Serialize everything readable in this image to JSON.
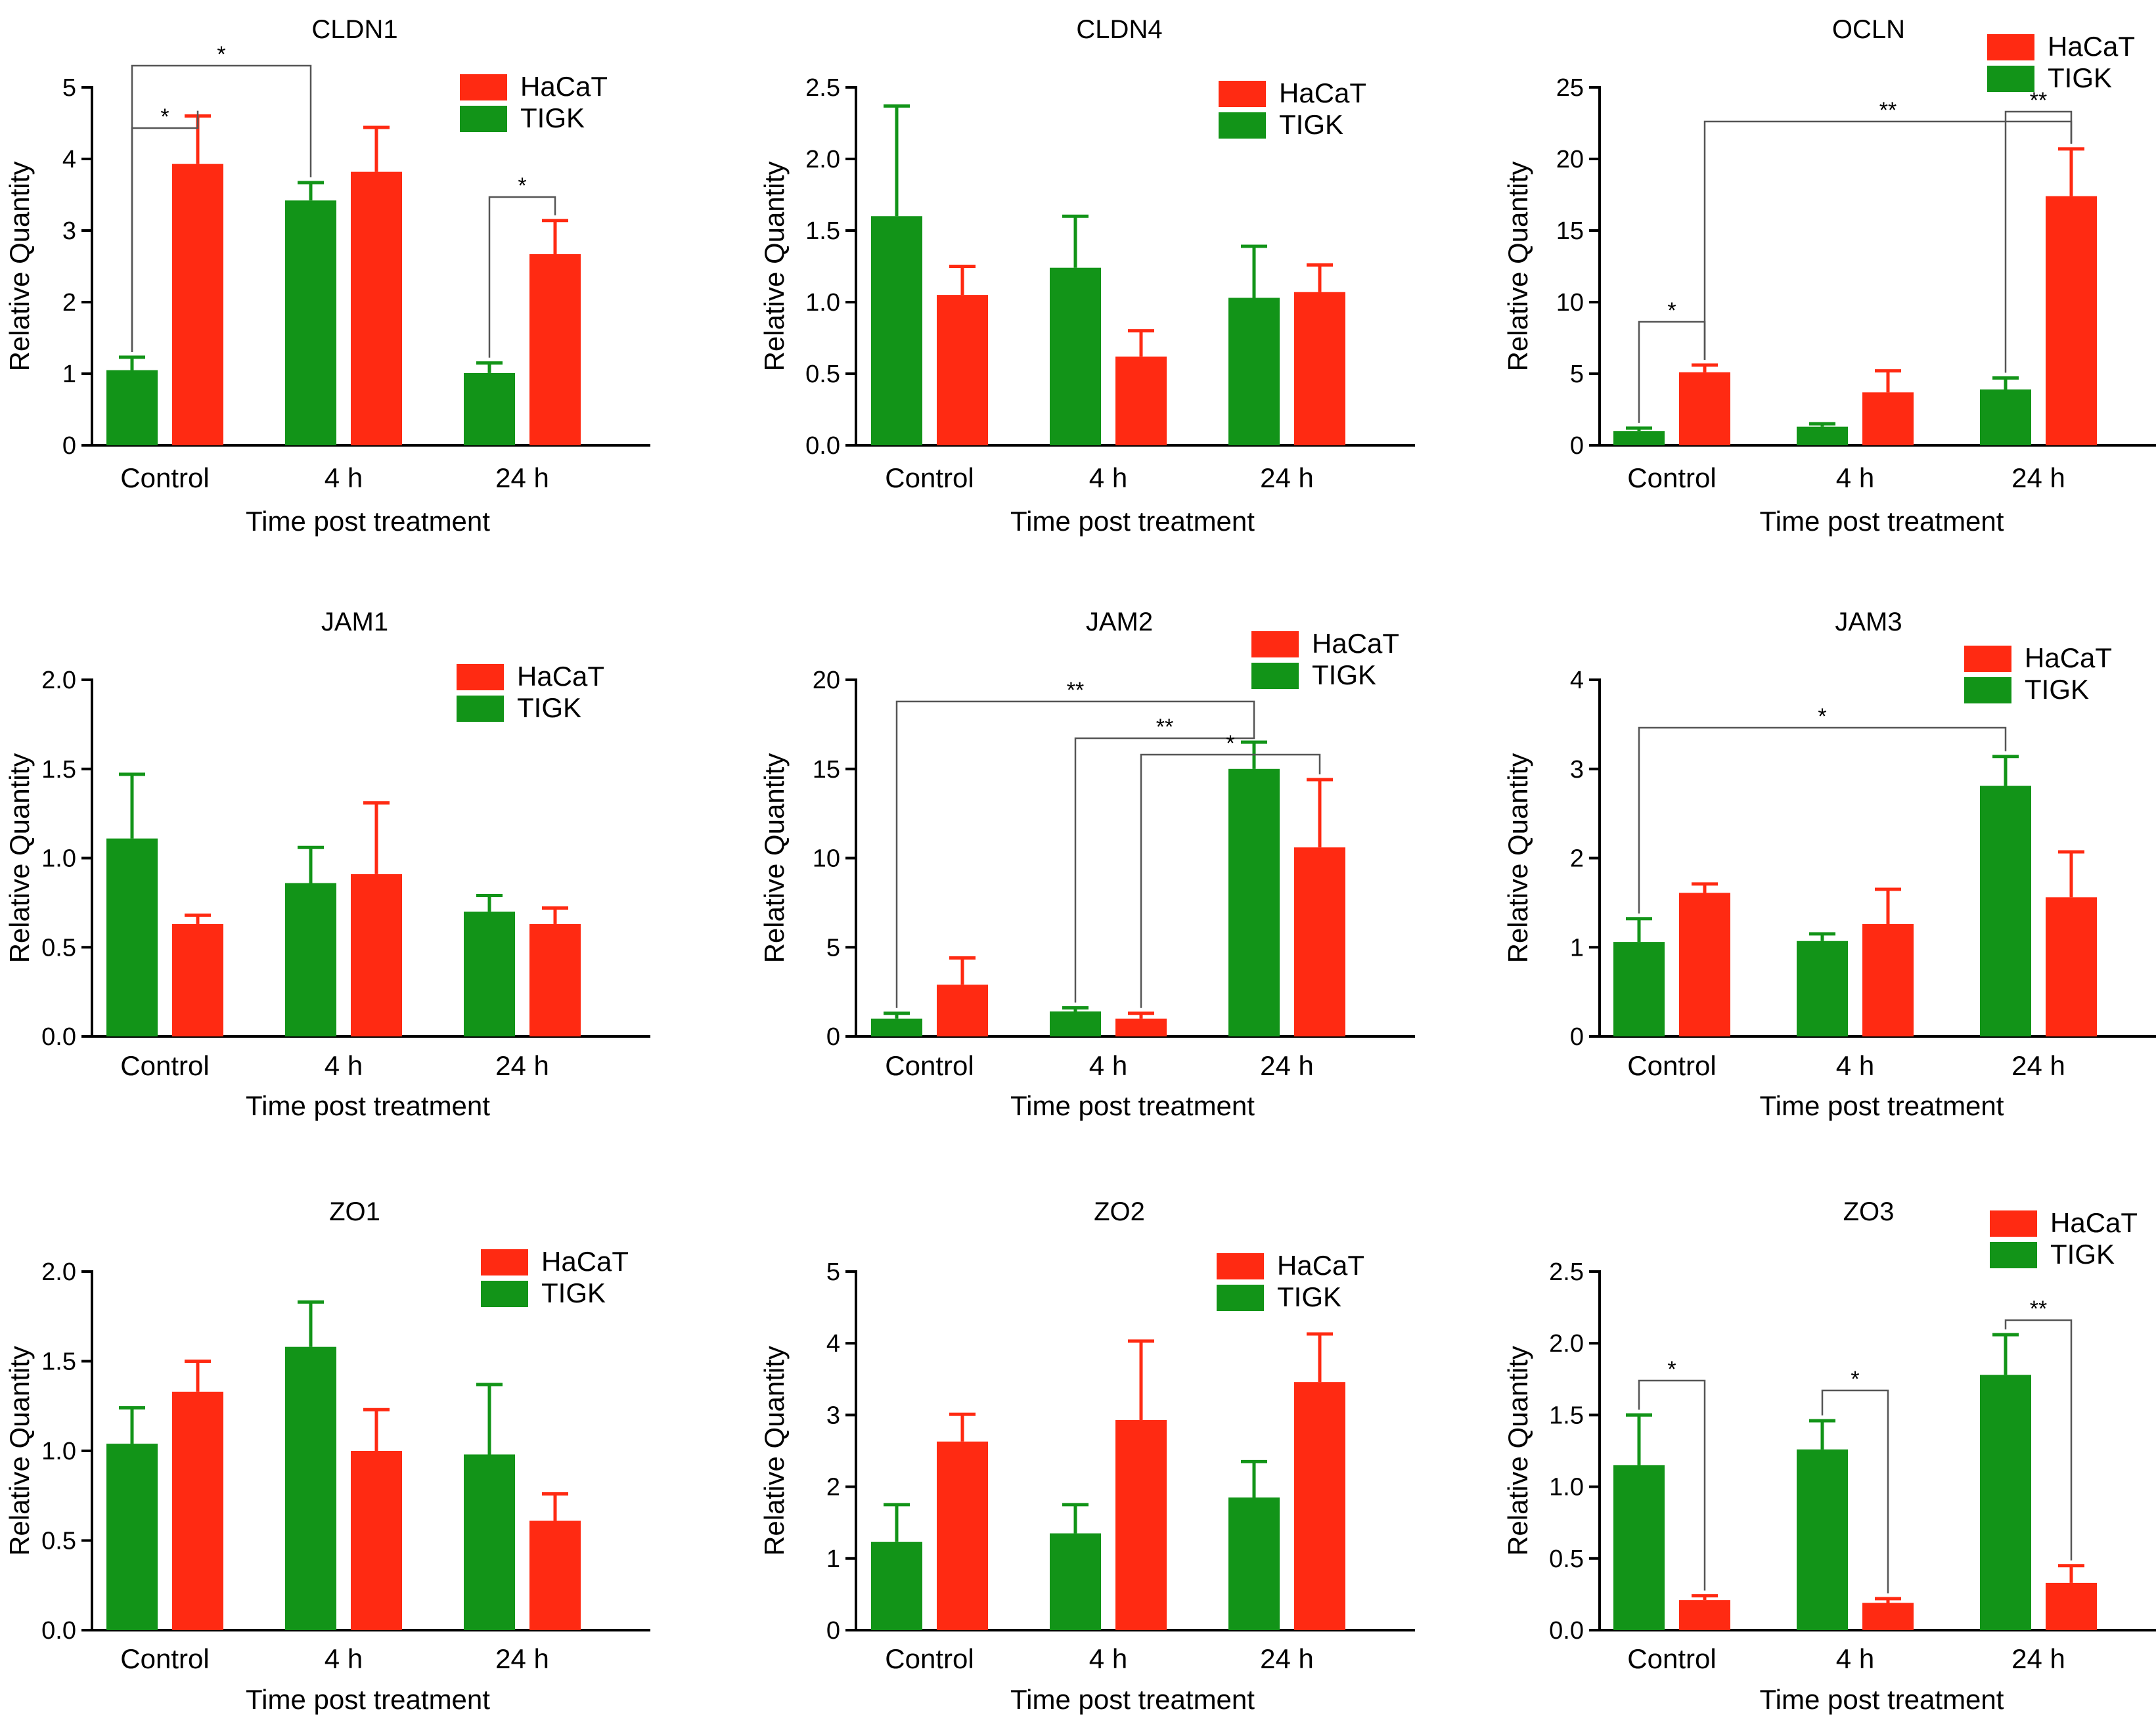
{
  "figure": {
    "colors": {
      "HaCaT": "#ff2a12",
      "TIGK": "#129418"
    },
    "chart_data": [
      {
        "type": "bar",
        "title": "CLDN1",
        "categories": [
          "Control",
          "4 h",
          "24 h"
        ],
        "xlabel": "Time post treatment",
        "ylabel": "Relative Quantity",
        "ylim": [
          0,
          5
        ],
        "yticks": [
          0,
          1,
          2,
          3,
          4,
          5
        ],
        "ytick_labels": [
          "0",
          "1",
          "2",
          "3",
          "4",
          "5"
        ],
        "legend_order": [
          "HaCaT",
          "TIGK"
        ],
        "series": [
          {
            "name": "TIGK",
            "values": [
              1.05,
              3.42,
              1.01
            ],
            "errors": [
              0.18,
              0.25,
              0.14
            ]
          },
          {
            "name": "HaCaT",
            "values": [
              3.93,
              3.82,
              2.67
            ],
            "errors": [
              0.67,
              0.62,
              0.47
            ]
          }
        ],
        "significance": [
          {
            "label": "*",
            "from": [
              0,
              0
            ],
            "to": [
              0,
              1
            ]
          },
          {
            "label": "*",
            "from": [
              0,
              0
            ],
            "to": [
              1,
              0
            ]
          },
          {
            "label": "*",
            "from": [
              2,
              0
            ],
            "to": [
              2,
              1
            ]
          }
        ]
      },
      {
        "type": "bar",
        "title": "CLDN4",
        "categories": [
          "Control",
          "4 h",
          "24 h"
        ],
        "xlabel": "Time post treatment",
        "ylabel": "Relative Quantity",
        "ylim": [
          0,
          2.5
        ],
        "yticks": [
          0,
          0.5,
          1,
          1.5,
          2,
          2.5
        ],
        "ytick_labels": [
          "0.0",
          "0.5",
          "1.0",
          "1.5",
          "2.0",
          "2.5"
        ],
        "legend_order": [
          "HaCaT",
          "TIGK"
        ],
        "series": [
          {
            "name": "TIGK",
            "values": [
              1.6,
              1.24,
              1.03
            ],
            "errors": [
              0.77,
              0.36,
              0.36
            ]
          },
          {
            "name": "HaCaT",
            "values": [
              1.05,
              0.62,
              1.07
            ],
            "errors": [
              0.2,
              0.18,
              0.19
            ]
          }
        ],
        "significance": []
      },
      {
        "type": "bar",
        "title": "OCLN",
        "categories": [
          "Control",
          "4 h",
          "24 h"
        ],
        "xlabel": "Time post treatment",
        "ylabel": "Relative Quantity",
        "ylim": [
          0,
          25
        ],
        "yticks": [
          0,
          5,
          10,
          15,
          20,
          25
        ],
        "ytick_labels": [
          "0",
          "5",
          "10",
          "15",
          "20",
          "25"
        ],
        "legend_order": [
          "HaCaT",
          "TIGK"
        ],
        "series": [
          {
            "name": "TIGK",
            "values": [
              1.0,
              1.3,
              3.9
            ],
            "errors": [
              0.2,
              0.2,
              0.8
            ]
          },
          {
            "name": "HaCaT",
            "values": [
              5.1,
              3.7,
              17.4
            ],
            "errors": [
              0.5,
              1.5,
              3.3
            ]
          }
        ],
        "significance": [
          {
            "label": "*",
            "from": [
              0,
              0
            ],
            "to": [
              0,
              1
            ]
          },
          {
            "label": "**",
            "from": [
              0,
              1
            ],
            "to": [
              2,
              1
            ]
          },
          {
            "label": "**",
            "from": [
              2,
              0
            ],
            "to": [
              2,
              1
            ]
          }
        ]
      },
      {
        "type": "bar",
        "title": "JAM1",
        "categories": [
          "Control",
          "4 h",
          "24 h"
        ],
        "xlabel": "Time post treatment",
        "ylabel": "Relative Quantity",
        "ylim": [
          0,
          2
        ],
        "yticks": [
          0,
          0.5,
          1,
          1.5,
          2
        ],
        "ytick_labels": [
          "0.0",
          "0.5",
          "1.0",
          "1.5",
          "2.0"
        ],
        "legend_order": [
          "HaCaT",
          "TIGK"
        ],
        "series": [
          {
            "name": "TIGK",
            "values": [
              1.11,
              0.86,
              0.7
            ],
            "errors": [
              0.36,
              0.2,
              0.09
            ]
          },
          {
            "name": "HaCaT",
            "values": [
              0.63,
              0.91,
              0.63
            ],
            "errors": [
              0.05,
              0.4,
              0.09
            ]
          }
        ],
        "significance": []
      },
      {
        "type": "bar",
        "title": "JAM2",
        "categories": [
          "Control",
          "4 h",
          "24 h"
        ],
        "xlabel": "Time post treatment",
        "ylabel": "Relative Quantity",
        "ylim": [
          0,
          20
        ],
        "yticks": [
          0,
          5,
          10,
          15,
          20
        ],
        "ytick_labels": [
          "0",
          "5",
          "10",
          "15",
          "20"
        ],
        "legend_order": [
          "HaCaT",
          "TIGK"
        ],
        "series": [
          {
            "name": "TIGK",
            "values": [
              1.0,
              1.4,
              15.0
            ],
            "errors": [
              0.3,
              0.2,
              1.5
            ]
          },
          {
            "name": "HaCaT",
            "values": [
              2.9,
              1.0,
              10.6
            ],
            "errors": [
              1.5,
              0.3,
              3.8
            ]
          }
        ],
        "significance": [
          {
            "label": "**",
            "from": [
              0,
              0
            ],
            "to": [
              2,
              0
            ]
          },
          {
            "label": "**",
            "from": [
              1,
              0
            ],
            "to": [
              2,
              0
            ]
          },
          {
            "label": "*",
            "from": [
              1,
              1
            ],
            "to": [
              2,
              1
            ]
          }
        ]
      },
      {
        "type": "bar",
        "title": "JAM3",
        "categories": [
          "Control",
          "4 h",
          "24 h"
        ],
        "xlabel": "Time post treatment",
        "ylabel": "Relative Quantity",
        "ylim": [
          0,
          4
        ],
        "yticks": [
          0,
          1,
          2,
          3,
          4
        ],
        "ytick_labels": [
          "0",
          "1",
          "2",
          "3",
          "4"
        ],
        "legend_order": [
          "HaCaT",
          "TIGK"
        ],
        "series": [
          {
            "name": "TIGK",
            "values": [
              1.06,
              1.07,
              2.81
            ],
            "errors": [
              0.26,
              0.08,
              0.33
            ]
          },
          {
            "name": "HaCaT",
            "values": [
              1.61,
              1.26,
              1.56
            ],
            "errors": [
              0.1,
              0.39,
              0.51
            ]
          }
        ],
        "significance": [
          {
            "label": "*",
            "from": [
              0,
              0
            ],
            "to": [
              2,
              0
            ]
          }
        ]
      },
      {
        "type": "bar",
        "title": "ZO1",
        "categories": [
          "Control",
          "4 h",
          "24 h"
        ],
        "xlabel": "Time post treatment",
        "ylabel": "Relative Quantity",
        "ylim": [
          0,
          2
        ],
        "yticks": [
          0,
          0.5,
          1,
          1.5,
          2
        ],
        "ytick_labels": [
          "0.0",
          "0.5",
          "1.0",
          "1.5",
          "2.0"
        ],
        "legend_order": [
          "HaCaT",
          "TIGK"
        ],
        "series": [
          {
            "name": "TIGK",
            "values": [
              1.04,
              1.58,
              0.98
            ],
            "errors": [
              0.2,
              0.25,
              0.39
            ]
          },
          {
            "name": "HaCaT",
            "values": [
              1.33,
              1.0,
              0.61
            ],
            "errors": [
              0.17,
              0.23,
              0.15
            ]
          }
        ],
        "significance": []
      },
      {
        "type": "bar",
        "title": "ZO2",
        "categories": [
          "Control",
          "4 h",
          "24 h"
        ],
        "xlabel": "Time post treatment",
        "ylabel": "Relative Quantity",
        "ylim": [
          0,
          5
        ],
        "yticks": [
          0,
          1,
          2,
          3,
          4,
          5
        ],
        "ytick_labels": [
          "0",
          "1",
          "2",
          "3",
          "4",
          "5"
        ],
        "legend_order": [
          "HaCaT",
          "TIGK"
        ],
        "series": [
          {
            "name": "TIGK",
            "values": [
              1.23,
              1.35,
              1.85
            ],
            "errors": [
              0.52,
              0.4,
              0.5
            ]
          },
          {
            "name": "HaCaT",
            "values": [
              2.63,
              2.93,
              3.46
            ],
            "errors": [
              0.38,
              1.1,
              0.67
            ]
          }
        ],
        "significance": []
      },
      {
        "type": "bar",
        "title": "ZO3",
        "categories": [
          "Control",
          "4 h",
          "24 h"
        ],
        "xlabel": "Time post treatment",
        "ylabel": "Relative Quantity",
        "ylim": [
          0,
          2.5
        ],
        "yticks": [
          0,
          0.5,
          1,
          1.5,
          2,
          2.5
        ],
        "ytick_labels": [
          "0.0",
          "0.5",
          "1.0",
          "1.5",
          "2.0",
          "2.5"
        ],
        "legend_order": [
          "HaCaT",
          "TIGK"
        ],
        "series": [
          {
            "name": "TIGK",
            "values": [
              1.15,
              1.26,
              1.78
            ],
            "errors": [
              0.35,
              0.2,
              0.28
            ]
          },
          {
            "name": "HaCaT",
            "values": [
              0.21,
              0.19,
              0.33
            ],
            "errors": [
              0.03,
              0.03,
              0.12
            ]
          }
        ],
        "significance": [
          {
            "label": "*",
            "from": [
              0,
              0
            ],
            "to": [
              0,
              1
            ]
          },
          {
            "label": "*",
            "from": [
              1,
              0
            ],
            "to": [
              1,
              1
            ]
          },
          {
            "label": "**",
            "from": [
              2,
              0
            ],
            "to": [
              2,
              1
            ]
          }
        ]
      }
    ]
  }
}
